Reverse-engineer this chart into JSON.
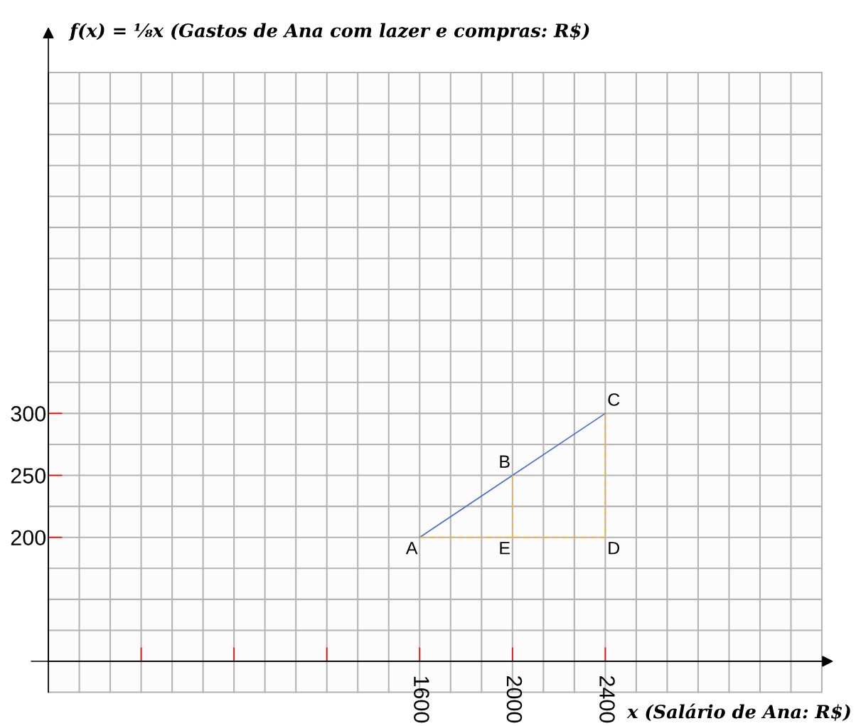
{
  "chart_data": {
    "type": "line",
    "ylabel": "f(x) = ⅛x (Gastos de Ana com lazer e compras: R$)",
    "xlabel": "x (Salário de Ana: R$)",
    "series": [
      {
        "color": "#4472c4",
        "line_style": "solid",
        "x": [
          1600,
          2000,
          2400
        ],
        "values": [
          200,
          250,
          300
        ]
      },
      {
        "color": "#f2b233",
        "line_style": "dashed",
        "x": [
          1600,
          2400,
          2400
        ],
        "values": [
          200,
          200,
          300
        ]
      },
      {
        "color": "#f2b233",
        "line_style": "dashed",
        "x": [
          2000,
          2000
        ],
        "values": [
          250,
          200
        ]
      }
    ],
    "annotations": [
      {
        "text": "A",
        "x": 1600,
        "y": 200
      },
      {
        "text": "B",
        "x": 2000,
        "y": 250
      },
      {
        "text": "C",
        "x": 2400,
        "y": 300
      },
      {
        "text": "D",
        "x": 2400,
        "y": 200
      },
      {
        "text": "E",
        "x": 2000,
        "y": 200
      }
    ],
    "xlim": [
      0,
      3333
    ],
    "ylim": [
      100,
      575
    ],
    "xticks": [
      {
        "value": 400,
        "label": null
      },
      {
        "value": 800,
        "label": null
      },
      {
        "value": 1200,
        "label": null
      },
      1600,
      2000,
      2400
    ],
    "yticks": [
      200,
      250,
      300
    ],
    "grid": true
  }
}
